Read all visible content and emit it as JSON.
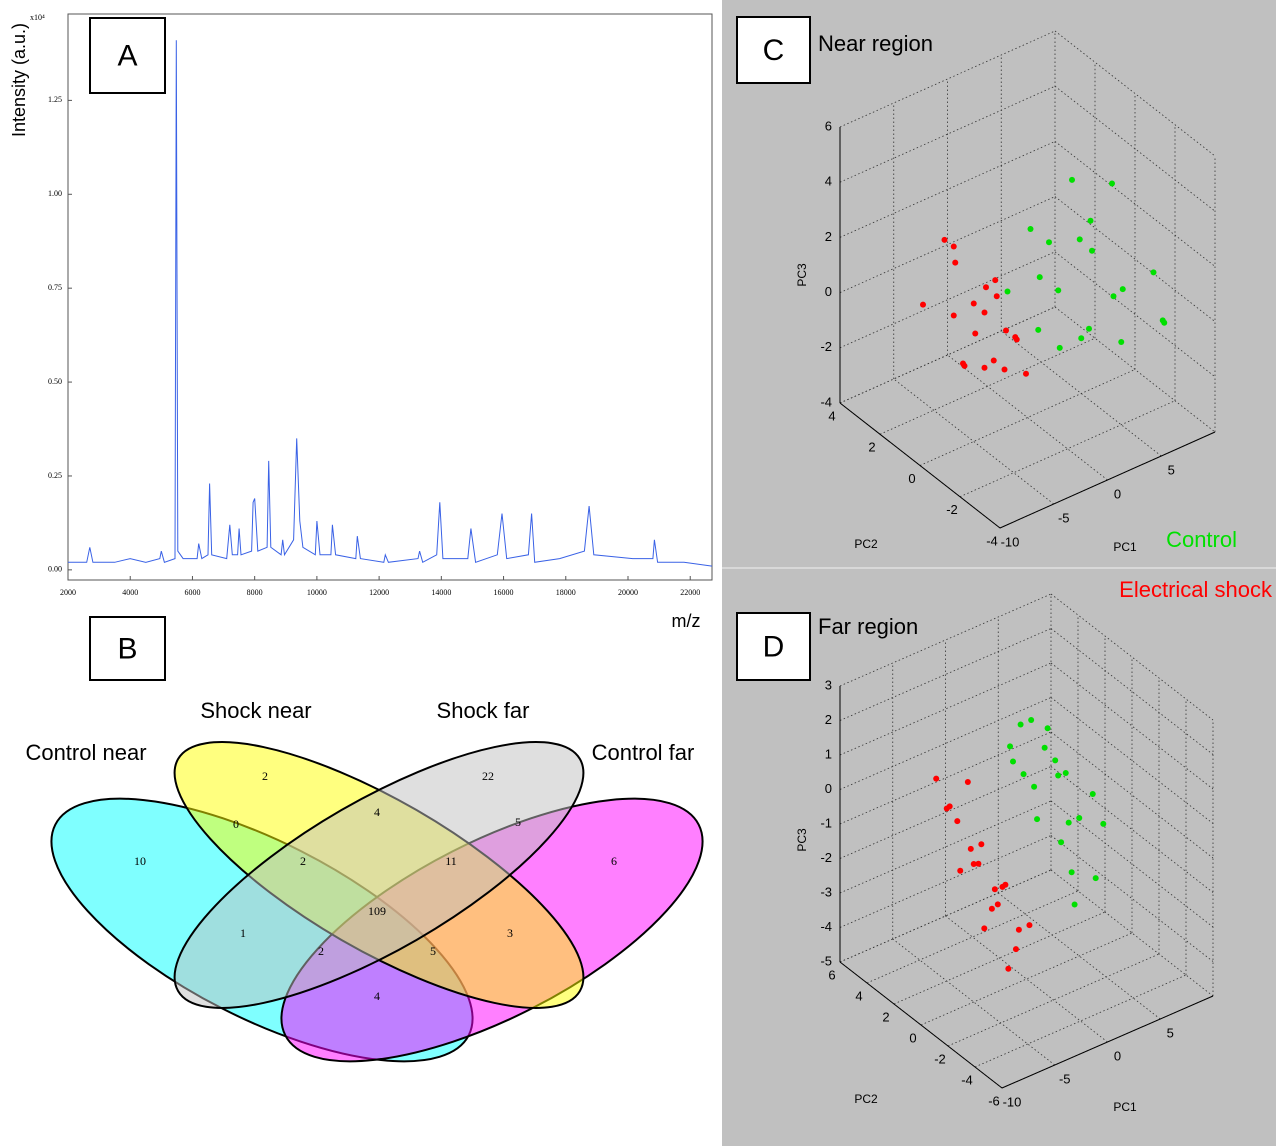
{
  "chart_data": [
    {
      "type": "line",
      "panel": "A",
      "x_label": "m/z",
      "y_label": "Intensity (a.u.)",
      "y_scale_label": "x10⁴",
      "color": "#3a62e6",
      "xlim": [
        2000,
        22700
      ],
      "ylim": [
        -0.027,
        1.48
      ],
      "xticks": [
        2000,
        4000,
        6000,
        8000,
        10000,
        12000,
        14000,
        16000,
        18000,
        20000,
        22000
      ],
      "yticks": [
        {
          "value": 0,
          "label": "0.00"
        },
        0.25,
        {
          "value": 0.5,
          "label": "0.50"
        },
        0.75,
        {
          "value": 1,
          "label": "1.00"
        },
        1.25
      ],
      "x": [
        2000,
        2600,
        2700,
        2800,
        3500,
        4000,
        4500,
        4950,
        5000,
        5100,
        5440,
        5480,
        5530,
        5700,
        6150,
        6200,
        6300,
        6500,
        6550,
        6620,
        7100,
        7200,
        7280,
        7450,
        7500,
        7560,
        7900,
        7950,
        8000,
        8100,
        8400,
        8450,
        8520,
        8850,
        8900,
        8960,
        9250,
        9350,
        9450,
        9550,
        9950,
        10000,
        10100,
        10450,
        10500,
        10600,
        11250,
        11300,
        11400,
        12150,
        12200,
        12300,
        13250,
        13300,
        13400,
        13850,
        13950,
        14050,
        14850,
        14950,
        15100,
        15800,
        15950,
        16100,
        16800,
        16900,
        17000,
        17800,
        18600,
        18750,
        18900,
        20150,
        20800,
        20850,
        20950,
        21800,
        22700
      ],
      "values": [
        0.02,
        0.02,
        0.06,
        0.02,
        0.02,
        0.03,
        0.02,
        0.03,
        0.05,
        0.02,
        0.03,
        1.41,
        0.05,
        0.03,
        0.03,
        0.07,
        0.03,
        0.04,
        0.23,
        0.04,
        0.03,
        0.12,
        0.04,
        0.04,
        0.11,
        0.04,
        0.05,
        0.18,
        0.19,
        0.05,
        0.06,
        0.29,
        0.06,
        0.04,
        0.08,
        0.04,
        0.08,
        0.35,
        0.13,
        0.06,
        0.04,
        0.13,
        0.04,
        0.04,
        0.12,
        0.04,
        0.03,
        0.09,
        0.03,
        0.02,
        0.04,
        0.02,
        0.03,
        0.05,
        0.02,
        0.04,
        0.18,
        0.03,
        0.03,
        0.11,
        0.02,
        0.04,
        0.15,
        0.03,
        0.04,
        0.15,
        0.02,
        0.03,
        0.05,
        0.17,
        0.04,
        0.03,
        0.03,
        0.08,
        0.02,
        0.02,
        0.01
      ]
    },
    {
      "type": "venn",
      "panel": "B",
      "sets": [
        "Control near",
        "Shock near",
        "Shock far",
        "Control far"
      ],
      "colors": [
        "#00ffff",
        "#ffff00",
        "#c0c0c0",
        "#ff00ff"
      ],
      "values": [
        2,
        4,
        22,
        0,
        5,
        10,
        2,
        11,
        6,
        109,
        1,
        3,
        2,
        5,
        4
      ]
    },
    {
      "type": "scatter3d",
      "panel": "C",
      "title": "Near region",
      "x_label": "PC1",
      "y_label": "PC2",
      "z_label": "PC3",
      "grid": true,
      "xlim": [
        -10,
        10
      ],
      "ylim": [
        -4,
        4
      ],
      "zlim": [
        -4,
        6
      ],
      "xticks": [
        -10,
        -5,
        0,
        5
      ],
      "yticks": [
        -4,
        -2,
        0,
        2,
        4
      ],
      "zticks": [
        -4,
        -2,
        0,
        2,
        4,
        6
      ],
      "series": [
        {
          "name": "Control",
          "color": "#00e000",
          "x": [
            2,
            4,
            6,
            3,
            5,
            7,
            1,
            8,
            3,
            6,
            2,
            5,
            8,
            4,
            0,
            7,
            3,
            6,
            1,
            9
          ],
          "y": [
            0,
            -1,
            0,
            1,
            -2,
            -1,
            0,
            -2,
            -1,
            1,
            -2,
            0,
            0,
            2,
            1,
            -3,
            0,
            -1,
            -1,
            -2
          ],
          "z": [
            2,
            3,
            1,
            0,
            -1,
            0,
            -1,
            1,
            2.5,
            3,
            0,
            -2,
            -1,
            1,
            0,
            0,
            -2,
            4,
            1,
            -1
          ]
        },
        {
          "name": "Electrical shock",
          "color": "#ff0000",
          "x": [
            -5,
            -4,
            -3,
            -6,
            -4,
            -2,
            -5,
            -3,
            -4,
            -2,
            -6,
            -3,
            -1,
            -5,
            -4,
            -2,
            -3,
            -5,
            -1,
            -4
          ],
          "y": [
            1,
            0,
            1,
            2,
            -1,
            0,
            0,
            -1,
            1,
            1,
            0,
            2,
            0,
            -1,
            2,
            -1,
            0,
            1,
            1,
            0
          ],
          "z": [
            0,
            0.5,
            -1,
            0,
            -1,
            -0.5,
            1,
            0,
            -2,
            0.5,
            -1,
            1,
            -1,
            -0.5,
            2,
            -1.5,
            1.5,
            2.5,
            0,
            -1.5
          ]
        }
      ]
    },
    {
      "type": "scatter3d",
      "panel": "D",
      "title": "Far region",
      "x_label": "PC1",
      "y_label": "PC2",
      "z_label": "PC3",
      "grid": true,
      "xlim": [
        -10,
        10
      ],
      "ylim": [
        -6,
        6
      ],
      "zlim": [
        -5,
        3
      ],
      "xticks": [
        -10,
        -5,
        0,
        5
      ],
      "yticks": [
        -6,
        -4,
        -2,
        0,
        2,
        4,
        6
      ],
      "zticks": [
        -5,
        -4,
        -3,
        -2,
        -1,
        0,
        1,
        2,
        3
      ],
      "series": [
        {
          "color": "#00e000",
          "x": [
            1,
            2,
            3,
            2,
            4,
            1,
            3,
            5,
            2,
            4,
            3,
            1,
            5,
            2,
            4,
            6,
            3,
            0,
            5,
            2
          ],
          "y": [
            2,
            1,
            0,
            2,
            0,
            0,
            1,
            -1,
            -1,
            1,
            -1,
            1,
            0,
            0,
            -2,
            -1,
            2,
            1,
            1,
            -2
          ],
          "z": [
            1,
            0,
            0.5,
            1.5,
            -1,
            -0.5,
            1,
            0,
            -1,
            0.5,
            -2,
            0.5,
            -1,
            2,
            -2,
            -1,
            1.5,
            1,
            0,
            -2.5
          ]
        },
        {
          "color": "#ff0000",
          "x": [
            -5,
            -4,
            -3,
            -5,
            -2,
            -4,
            -3,
            -6,
            -2,
            -1,
            -3,
            -4,
            -2,
            -5,
            -1,
            -3,
            -6,
            -4,
            -2,
            -1
          ],
          "y": [
            2,
            1,
            0,
            0,
            1,
            -1,
            2,
            1,
            -1,
            0,
            1,
            0,
            0,
            1,
            -1,
            -1,
            2,
            2,
            2,
            1
          ],
          "z": [
            0,
            -1,
            -2,
            -1,
            -3,
            -2,
            0.5,
            0.5,
            -3,
            -4,
            -1,
            -3,
            -2,
            -1.5,
            -3,
            -4,
            1,
            -0.5,
            -2,
            -2.5
          ]
        }
      ]
    }
  ]
}
